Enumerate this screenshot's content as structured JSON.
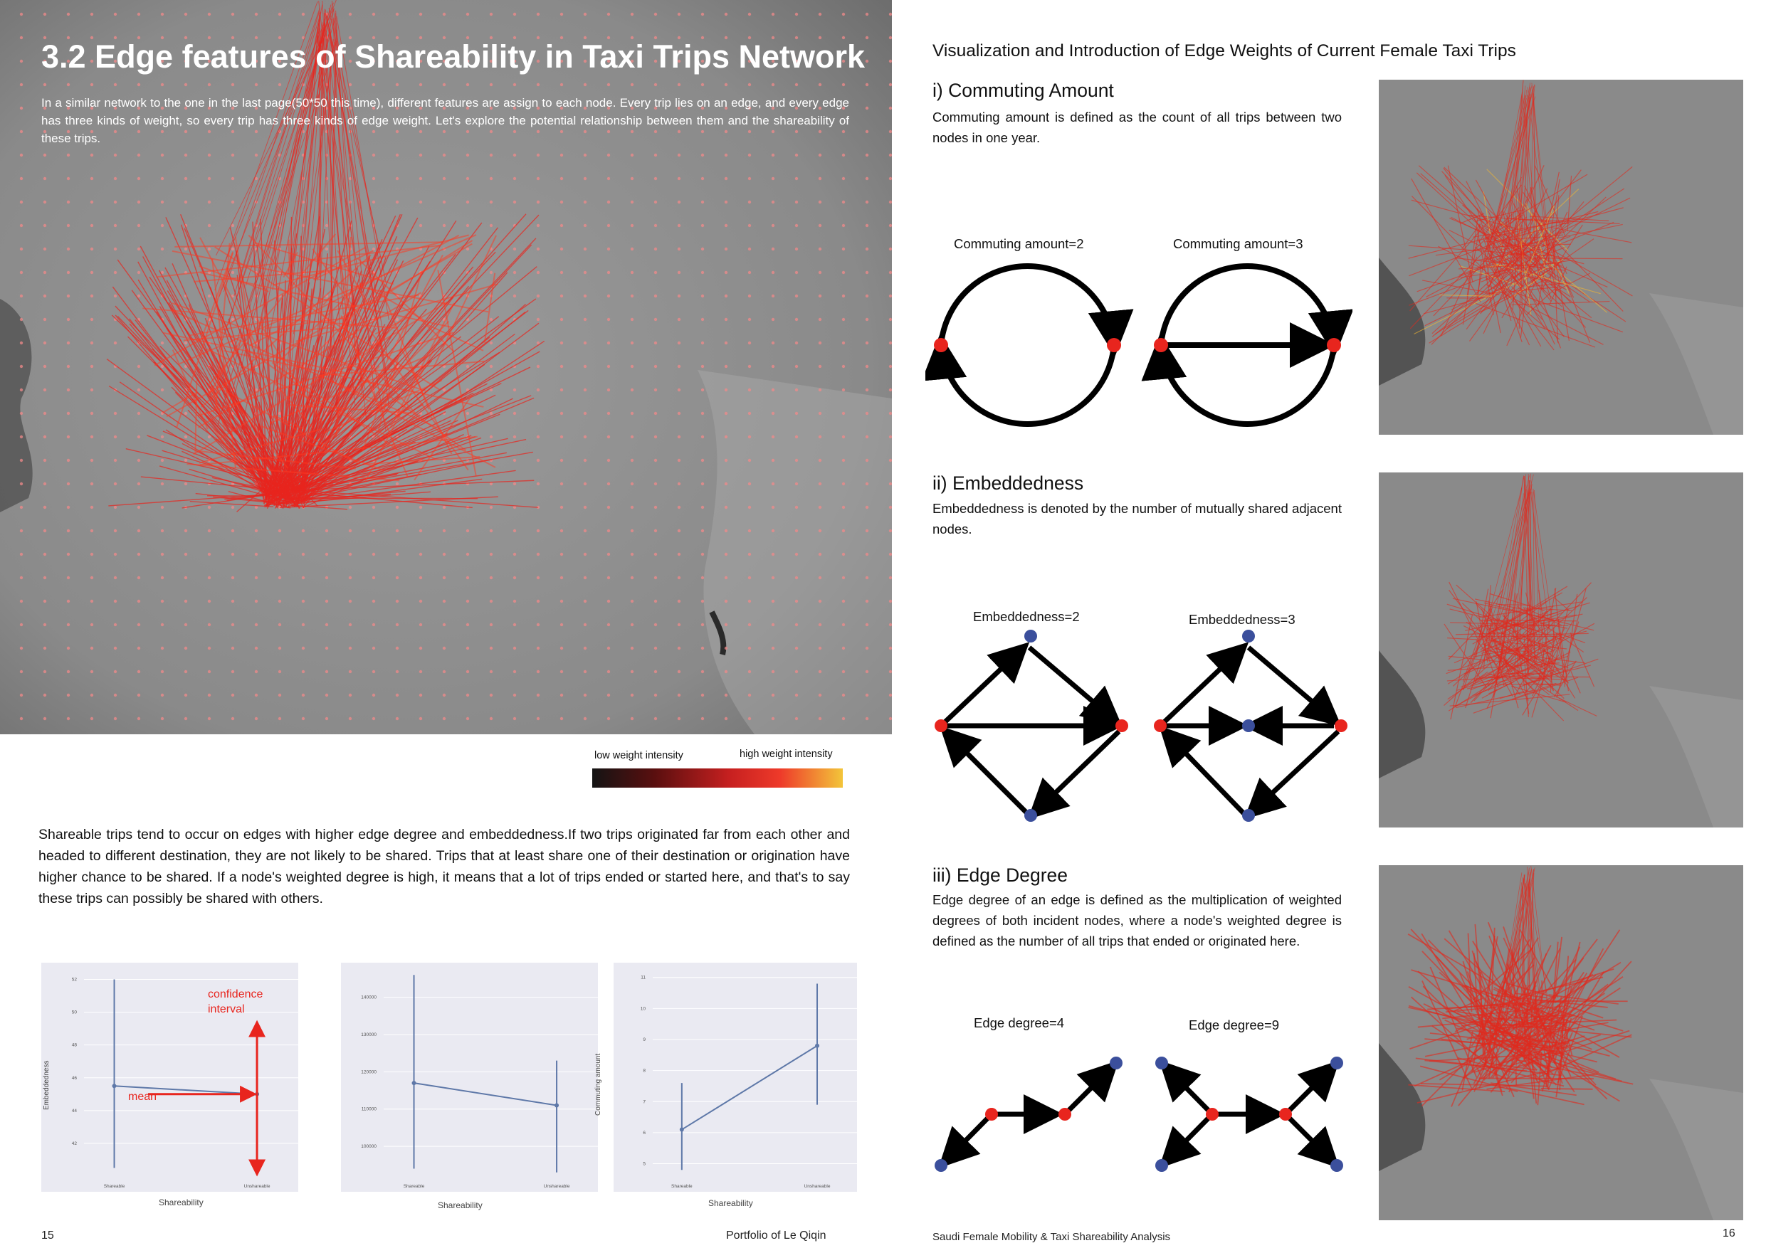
{
  "left_page": {
    "title": "3.2 Edge features of Shareability in Taxi Trips Network",
    "intro": "In a similar network to the one in the last page(50*50 this time), different features are assign to each node. Every trip lies on an edge, and every edge has three kinds of weight, so every trip has three kinds of edge weight. Let's explore the potential relationship between them and the shareability of these trips.",
    "legend": {
      "low": "low weight intensity",
      "high": "high weight intensity"
    },
    "body": "Shareable trips tend to occur on edges with higher edge degree and embeddedness.If two trips originated far from each other and headed to different destination, they are not likely to be shared. Trips that at least share one of their destination or origination have higher chance to be shared. If a node's weighted degree is high, it means that a lot of trips ended or started here, and that's to say these trips can possibly be shared with others.",
    "charts": [
      {
        "ylabel": "Embeddedness",
        "xlabel": "Shareability",
        "categories": [
          "Shareable",
          "Unshareable"
        ],
        "yticks": [
          "52",
          "50",
          "48",
          "46",
          "44",
          "42"
        ],
        "mean": [
          45.5,
          45.0
        ],
        "ci_low": [
          40.5,
          40.5
        ],
        "ci_high": [
          52.0,
          49.0
        ],
        "ylim": [
          40,
          52.5
        ],
        "annotations": {
          "confidence_interval": "confidence\ninterval",
          "mean": "mean"
        },
        "annotation_color": "#e8251e"
      },
      {
        "ylabel": "",
        "xlabel": "Shareability",
        "categories": [
          "Shareable",
          "Unshareable"
        ],
        "yticks": [
          "140000",
          "130000",
          "120000",
          "110000",
          "100000"
        ],
        "mean": [
          117000,
          111000
        ],
        "ci_low": [
          94000,
          93000
        ],
        "ci_high": [
          146000,
          123000
        ],
        "ylim": [
          92000,
          147000
        ]
      },
      {
        "ylabel": "Commuting amount",
        "xlabel": "Shareability",
        "categories": [
          "Shareable",
          "Unshareable"
        ],
        "yticks": [
          "11",
          "10",
          "9",
          "8",
          "7",
          "6",
          "5"
        ],
        "mean": [
          6.1,
          8.8
        ],
        "ci_low": [
          4.8,
          6.9
        ],
        "ci_high": [
          7.6,
          10.8
        ],
        "ylim": [
          4.6,
          11.2
        ]
      }
    ],
    "page_number": "15",
    "footer": "Portfolio of Le Qiqin"
  },
  "right_page": {
    "title": "Visualization and Introduction of Edge Weights of Current Female Taxi Trips",
    "sections": [
      {
        "heading": "i) Commuting Amount",
        "text": "Commuting amount is defined as the count of all trips between two nodes in one year.",
        "diagram_labels": [
          "Commuting amount=2",
          "Commuting amount=3"
        ]
      },
      {
        "heading": "ii) Embeddedness",
        "text": "Embeddedness is denoted by the number of mutually shared adjacent nodes.",
        "diagram_labels": [
          "Embeddedness=2",
          "Embeddedness=3"
        ]
      },
      {
        "heading": "iii) Edge Degree",
        "text": "Edge degree of an edge is defined as the multiplication of weighted degrees of both incident nodes, where a node's weighted degree is defined as the number of all trips that ended or originated here.",
        "diagram_labels": [
          "Edge degree=4",
          "Edge degree=9"
        ]
      }
    ],
    "footer": "Saudi Female Mobility & Taxi Shareability Analysis",
    "page_number": "16"
  },
  "colors": {
    "edge_red": "#e8251e",
    "node_red": "#e8251e",
    "node_blue": "#3b4f9c",
    "chart_bg": "#eaeaf2",
    "chart_line": "#5e78a8"
  }
}
